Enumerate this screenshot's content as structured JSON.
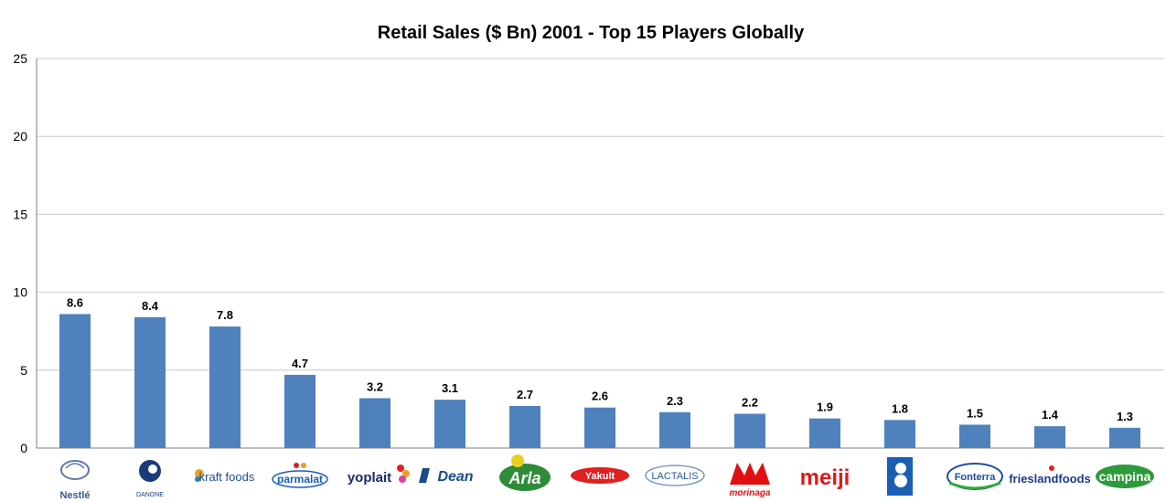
{
  "chart_data": {
    "type": "bar",
    "title": "Retail Sales ($ Bn) 2001 - Top 15 Players Globally",
    "xlabel": "",
    "ylabel": "",
    "ylim": [
      0,
      25
    ],
    "yticks": [
      "0",
      "5",
      "10",
      "15",
      "20",
      "25"
    ],
    "grid": true,
    "legend": "none",
    "bar_color": "#4f81bd",
    "categories": [
      "Nestlé",
      "Danone",
      "Kraft Foods",
      "Parmalat",
      "Yoplait",
      "Dean",
      "Arla",
      "Yakult",
      "Lactalis",
      "Morinaga",
      "Meiji",
      "Bongrain",
      "Fonterra",
      "Friesland Foods",
      "Campina"
    ],
    "values": [
      8.6,
      8.4,
      7.8,
      4.7,
      3.2,
      3.1,
      2.7,
      2.6,
      2.3,
      2.2,
      1.9,
      1.8,
      1.5,
      1.4,
      1.3
    ],
    "value_labels": [
      "8.6",
      "8.4",
      "7.8",
      "4.7",
      "3.2",
      "3.1",
      "2.7",
      "2.6",
      "2.3",
      "2.2",
      "1.9",
      "1.8",
      "1.5",
      "1.4",
      "1.3"
    ]
  },
  "logos": [
    {
      "name": "nestle-logo",
      "text": "Nestlé",
      "color": "#3a5a8a"
    },
    {
      "name": "danone-logo",
      "text": "DANONE",
      "color": "#1a3a7a"
    },
    {
      "name": "kraft-foods-logo",
      "text": "kraft foods",
      "color": "#1a4f9c"
    },
    {
      "name": "parmalat-logo",
      "text": "parmalat",
      "color": "#1a5fb4"
    },
    {
      "name": "yoplait-logo",
      "text": "yoplait",
      "color": "#1a2a6a"
    },
    {
      "name": "dean-logo",
      "text": "Dean",
      "color": "#1a4a8a"
    },
    {
      "name": "arla-logo",
      "text": "Arla",
      "color": "#2e8b3a"
    },
    {
      "name": "yakult-logo",
      "text": "Yakult",
      "color": "#e02020"
    },
    {
      "name": "lactalis-logo",
      "text": "LACTALIS",
      "color": "#2a5aa0"
    },
    {
      "name": "morinaga-logo",
      "text": "morinaga",
      "color": "#e01010"
    },
    {
      "name": "meiji-logo",
      "text": "meiji",
      "color": "#e01818"
    },
    {
      "name": "bongrain-logo",
      "text": "",
      "color": "#1a5fb4"
    },
    {
      "name": "fonterra-logo",
      "text": "Fonterra",
      "color": "#1a4fa0"
    },
    {
      "name": "friesland-foods-logo",
      "text": "frieslandfoods",
      "color": "#1a3a8a"
    },
    {
      "name": "campina-logo",
      "text": "campina",
      "color": "#2e9a3a"
    }
  ]
}
